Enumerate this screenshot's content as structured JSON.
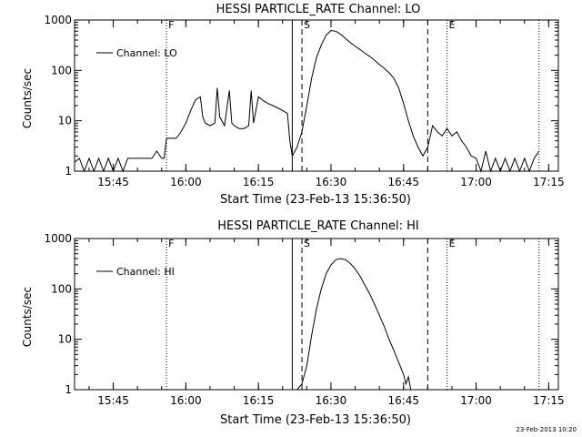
{
  "chart_data": [
    {
      "type": "line",
      "title": "HESSI PARTICLE_RATE Channel: LO",
      "xlabel": "Start Time (23-Feb-13 15:36:50)",
      "ylabel": "Counts/sec",
      "y_scale": "log",
      "ylim": [
        1,
        1000
      ],
      "xlim": [
        "15:37",
        "17:17"
      ],
      "x_ticks": [
        "15:45",
        "16:00",
        "16:15",
        "16:30",
        "16:45",
        "17:00",
        "17:15"
      ],
      "y_ticks": [
        "1",
        "10",
        "100",
        "1000"
      ],
      "legend": {
        "label": "Channel: LO",
        "placement": "top-left"
      },
      "markers": [
        {
          "label": "F",
          "time": "15:56",
          "style": "dotted"
        },
        {
          "label": "",
          "time": "16:22",
          "style": "solid"
        },
        {
          "label": "S",
          "time": "16:24",
          "style": "dashed"
        },
        {
          "label": "",
          "time": "16:50",
          "style": "dashed"
        },
        {
          "label": "E",
          "time": "16:54",
          "style": "dotted"
        },
        {
          "label": "",
          "time": "17:13",
          "style": "dotted"
        }
      ],
      "series": [
        {
          "name": "Channel: LO",
          "points": [
            [
              "15:37",
              1.5
            ],
            [
              "15:38",
              1.8
            ],
            [
              "15:39",
              1.0
            ],
            [
              "15:40",
              1.8
            ],
            [
              "15:41",
              1.0
            ],
            [
              "15:42",
              1.8
            ],
            [
              "15:43",
              1.0
            ],
            [
              "15:44",
              1.8
            ],
            [
              "15:45",
              1.0
            ],
            [
              "15:46",
              1.8
            ],
            [
              "15:47",
              1.0
            ],
            [
              "15:48",
              1.8
            ],
            [
              "15:49",
              1.8
            ],
            [
              "15:50",
              1.8
            ],
            [
              "15:51",
              1.8
            ],
            [
              "15:52",
              1.8
            ],
            [
              "15:53",
              1.8
            ],
            [
              "15:54",
              2.5
            ],
            [
              "15:55",
              1.8
            ],
            [
              "15:55.5",
              1.8
            ],
            [
              "15:56",
              4.5
            ],
            [
              "15:57",
              4.5
            ],
            [
              "15:58",
              4.5
            ],
            [
              "15:59",
              6
            ],
            [
              "16:00",
              9
            ],
            [
              "16:01",
              16
            ],
            [
              "16:02",
              26
            ],
            [
              "16:03",
              30
            ],
            [
              "16:03.5",
              12
            ],
            [
              "16:04",
              9
            ],
            [
              "16:05",
              8
            ],
            [
              "16:06",
              9
            ],
            [
              "16:06.5",
              45
            ],
            [
              "16:07",
              12
            ],
            [
              "16:08",
              8
            ],
            [
              "16:09",
              40
            ],
            [
              "16:09.5",
              9
            ],
            [
              "16:10",
              8
            ],
            [
              "16:11",
              7
            ],
            [
              "16:12",
              7
            ],
            [
              "16:13",
              8
            ],
            [
              "16:13.5",
              40
            ],
            [
              "16:14",
              9
            ],
            [
              "16:15",
              30
            ],
            [
              "16:16",
              25
            ],
            [
              "16:17",
              22
            ],
            [
              "16:18",
              20
            ],
            [
              "16:19",
              18
            ],
            [
              "16:20",
              16
            ],
            [
              "16:21",
              14
            ],
            [
              "16:21.5",
              4
            ],
            [
              "16:22",
              2
            ],
            [
              "16:23",
              3
            ],
            [
              "16:24",
              6
            ],
            [
              "16:25",
              20
            ],
            [
              "16:26",
              70
            ],
            [
              "16:27",
              180
            ],
            [
              "16:28",
              320
            ],
            [
              "16:29",
              500
            ],
            [
              "16:30",
              620
            ],
            [
              "16:31",
              600
            ],
            [
              "16:32",
              520
            ],
            [
              "16:33",
              430
            ],
            [
              "16:34",
              360
            ],
            [
              "16:35",
              300
            ],
            [
              "16:36",
              260
            ],
            [
              "16:37",
              220
            ],
            [
              "16:38",
              190
            ],
            [
              "16:39",
              160
            ],
            [
              "16:40",
              130
            ],
            [
              "16:41",
              110
            ],
            [
              "16:42",
              90
            ],
            [
              "16:43",
              70
            ],
            [
              "16:44",
              45
            ],
            [
              "16:45",
              22
            ],
            [
              "16:46",
              10
            ],
            [
              "16:47",
              5
            ],
            [
              "16:48",
              3
            ],
            [
              "16:49",
              2
            ],
            [
              "16:50",
              3
            ],
            [
              "16:51",
              8
            ],
            [
              "16:52",
              6
            ],
            [
              "16:53",
              5
            ],
            [
              "16:54",
              7
            ],
            [
              "16:55",
              5
            ],
            [
              "16:56",
              6
            ],
            [
              "16:57",
              4
            ],
            [
              "16:58",
              3
            ],
            [
              "16:59",
              2
            ],
            [
              "17:00",
              1.8
            ],
            [
              "17:01",
              1.0
            ],
            [
              "17:02",
              2.5
            ],
            [
              "17:03",
              1.0
            ],
            [
              "17:04",
              1.8
            ],
            [
              "17:05",
              1.0
            ],
            [
              "17:06",
              1.8
            ],
            [
              "17:07",
              1.0
            ],
            [
              "17:08",
              1.8
            ],
            [
              "17:09",
              1.0
            ],
            [
              "17:10",
              1.8
            ],
            [
              "17:11",
              1.0
            ],
            [
              "17:12",
              1.8
            ],
            [
              "17:13",
              2.5
            ]
          ]
        }
      ]
    },
    {
      "type": "line",
      "title": "HESSI PARTICLE_RATE Channel: HI",
      "xlabel": "Start Time (23-Feb-13 15:36:50)",
      "ylabel": "Counts/sec",
      "y_scale": "log",
      "ylim": [
        1,
        1000
      ],
      "xlim": [
        "15:37",
        "17:17"
      ],
      "x_ticks": [
        "15:45",
        "16:00",
        "16:15",
        "16:30",
        "16:45",
        "17:00",
        "17:15"
      ],
      "y_ticks": [
        "1",
        "10",
        "100",
        "1000"
      ],
      "legend": {
        "label": "Channel: HI",
        "placement": "top-left"
      },
      "markers": [
        {
          "label": "F",
          "time": "15:56",
          "style": "dotted"
        },
        {
          "label": "",
          "time": "16:22",
          "style": "solid"
        },
        {
          "label": "S",
          "time": "16:24",
          "style": "dashed"
        },
        {
          "label": "",
          "time": "16:50",
          "style": "dashed"
        },
        {
          "label": "E",
          "time": "16:54",
          "style": "dotted"
        },
        {
          "label": "",
          "time": "17:13",
          "style": "dotted"
        }
      ],
      "series": [
        {
          "name": "Channel: HI",
          "points": [
            [
              "16:23",
              1.0
            ],
            [
              "16:24",
              1.3
            ],
            [
              "16:25",
              3
            ],
            [
              "16:26",
              12
            ],
            [
              "16:27",
              40
            ],
            [
              "16:28",
              100
            ],
            [
              "16:29",
              200
            ],
            [
              "16:30",
              300
            ],
            [
              "16:31",
              380
            ],
            [
              "16:32",
              400
            ],
            [
              "16:33",
              380
            ],
            [
              "16:34",
              320
            ],
            [
              "16:35",
              250
            ],
            [
              "16:36",
              180
            ],
            [
              "16:37",
              120
            ],
            [
              "16:38",
              80
            ],
            [
              "16:39",
              50
            ],
            [
              "16:40",
              30
            ],
            [
              "16:41",
              18
            ],
            [
              "16:42",
              10
            ],
            [
              "16:43",
              6
            ],
            [
              "16:44",
              3.5
            ],
            [
              "16:45",
              2
            ],
            [
              "16:45.5",
              1.3
            ],
            [
              "16:46",
              1.8
            ],
            [
              "16:46.5",
              1.0
            ]
          ]
        }
      ]
    }
  ],
  "footer": {
    "timestamp": "23-Feb-2013 10:20"
  }
}
